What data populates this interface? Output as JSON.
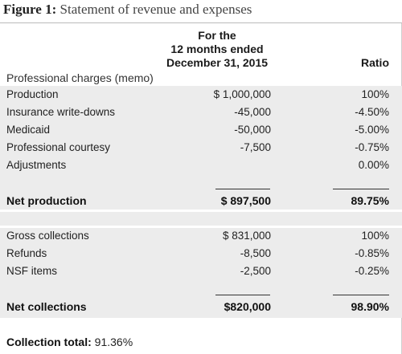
{
  "figure": {
    "label": "Figure 1:",
    "title": "Statement of revenue and expenses"
  },
  "columns": {
    "amount_header_line1": "For the",
    "amount_header_line2": "12 months ended",
    "amount_header_line3": "December 31, 2015",
    "ratio_header": "Ratio"
  },
  "memo_label": "Professional charges (memo)",
  "charges": [
    {
      "label": "Production",
      "amount": "$ 1,000,000",
      "ratio": "100%"
    },
    {
      "label": "Insurance write-downs",
      "amount": "-45,000",
      "ratio": "-4.50%"
    },
    {
      "label": "Medicaid",
      "amount": "-50,000",
      "ratio": "-5.00%"
    },
    {
      "label": "Professional courtesy",
      "amount": "-7,500",
      "ratio": "-0.75%"
    },
    {
      "label": "Adjustments",
      "amount": "",
      "ratio": "0.00%"
    }
  ],
  "net_production": {
    "label": "Net production",
    "amount": "$ 897,500",
    "ratio": "89.75%"
  },
  "collections": [
    {
      "label": "Gross collections",
      "amount": "$ 831,000",
      "ratio": "100%"
    },
    {
      "label": "Refunds",
      "amount": "-8,500",
      "ratio": "-0.85%"
    },
    {
      "label": "NSF items",
      "amount": "-2,500",
      "ratio": "-0.25%"
    }
  ],
  "net_collections": {
    "label": "Net collections",
    "amount": "$820,000",
    "ratio": "98.90%"
  },
  "collection_total": {
    "label": "Collection total:",
    "value": "91.36%"
  }
}
